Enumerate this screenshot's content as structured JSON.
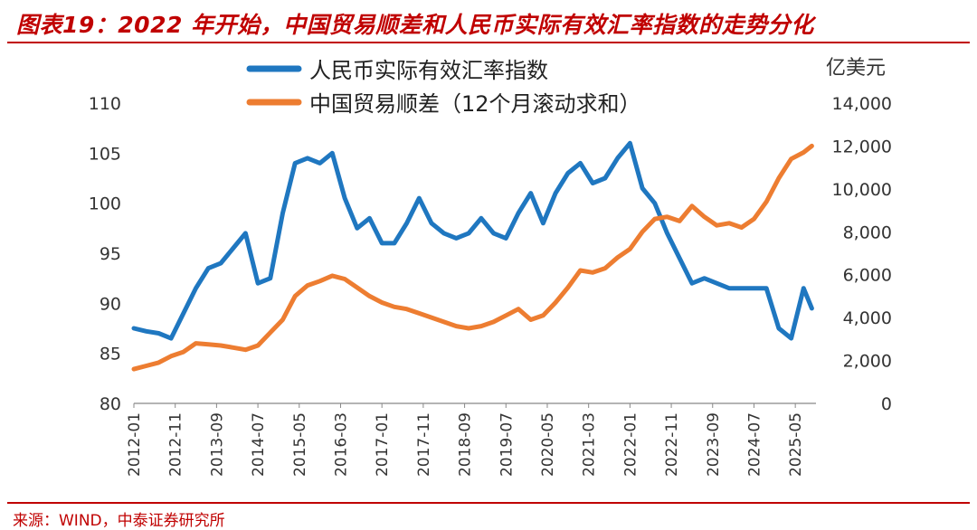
{
  "header": {
    "title": "图表19：2022 年开始，中国贸易顺差和人民币实际有效汇率指数的走势分化"
  },
  "footer": {
    "source": "来源：WIND，中泰证券研究所"
  },
  "colors": {
    "accent_red": "#c00000",
    "reer_line": "#1f77c0",
    "trade_line": "#ed7d31"
  },
  "chart_data": {
    "type": "line",
    "title": "图表19：2022 年开始，中国贸易顺差和人民币实际有效汇率指数的走势分化",
    "xlabel": "",
    "ylabel": "",
    "y2label": "亿美元",
    "ylim": [
      80,
      110
    ],
    "y2lim": [
      0,
      14000
    ],
    "legend": "top-center",
    "grid": false,
    "yticks": [
      "110",
      "105",
      "100",
      "95",
      "90",
      "85",
      "80"
    ],
    "y2ticks": [
      "14,000",
      "12,000",
      "10,000",
      "8,000",
      "6,000",
      "4,000",
      "2,000",
      "0"
    ],
    "xticks": [
      "2012-01",
      "2012-11",
      "2013-09",
      "2014-07",
      "2015-05",
      "2016-03",
      "2017-01",
      "2017-11",
      "2018-09",
      "2019-07",
      "2020-05",
      "2021-03",
      "2022-01",
      "2022-11",
      "2023-09",
      "2024-07",
      "2025-05"
    ],
    "series": [
      {
        "name": "人民币实际有效汇率指数",
        "axis": "left",
        "color": "#1f77c0",
        "x": [
          "2012-01",
          "2012-04",
          "2012-07",
          "2012-10",
          "2013-01",
          "2013-04",
          "2013-07",
          "2013-10",
          "2014-01",
          "2014-04",
          "2014-07",
          "2014-10",
          "2015-01",
          "2015-04",
          "2015-07",
          "2015-10",
          "2016-01",
          "2016-04",
          "2016-07",
          "2016-10",
          "2017-01",
          "2017-04",
          "2017-07",
          "2017-10",
          "2018-01",
          "2018-04",
          "2018-07",
          "2018-10",
          "2019-01",
          "2019-04",
          "2019-07",
          "2019-10",
          "2020-01",
          "2020-04",
          "2020-07",
          "2020-10",
          "2021-01",
          "2021-04",
          "2021-07",
          "2021-10",
          "2022-01",
          "2022-04",
          "2022-07",
          "2022-10",
          "2023-01",
          "2023-04",
          "2023-07",
          "2023-10",
          "2024-01",
          "2024-04",
          "2024-07",
          "2024-10",
          "2025-01",
          "2025-04",
          "2025-07",
          "2025-09"
        ],
        "values": [
          87.5,
          87.2,
          87.0,
          86.5,
          89.0,
          91.5,
          93.5,
          94.0,
          95.5,
          97.0,
          92.0,
          92.5,
          99.0,
          104.0,
          104.5,
          104.0,
          105.0,
          100.5,
          97.5,
          98.5,
          96.0,
          96.0,
          98.0,
          100.5,
          98.0,
          97.0,
          96.5,
          97.0,
          98.5,
          97.0,
          96.5,
          99.0,
          101.0,
          98.0,
          101.0,
          103.0,
          104.0,
          102.0,
          102.5,
          104.5,
          106.0,
          101.5,
          100.0,
          97.0,
          94.5,
          92.0,
          92.5,
          92.0,
          91.5,
          91.5,
          91.5,
          91.5,
          87.5,
          86.5,
          91.5,
          89.5
        ]
      },
      {
        "name": "中国贸易顺差（12个月滚动求和）",
        "axis": "right",
        "color": "#ed7d31",
        "x": [
          "2012-01",
          "2012-04",
          "2012-07",
          "2012-10",
          "2013-01",
          "2013-04",
          "2013-07",
          "2013-10",
          "2014-01",
          "2014-04",
          "2014-07",
          "2014-10",
          "2015-01",
          "2015-04",
          "2015-07",
          "2015-10",
          "2016-01",
          "2016-04",
          "2016-07",
          "2016-10",
          "2017-01",
          "2017-04",
          "2017-07",
          "2017-10",
          "2018-01",
          "2018-04",
          "2018-07",
          "2018-10",
          "2019-01",
          "2019-04",
          "2019-07",
          "2019-10",
          "2020-01",
          "2020-04",
          "2020-07",
          "2020-10",
          "2021-01",
          "2021-04",
          "2021-07",
          "2021-10",
          "2022-01",
          "2022-04",
          "2022-07",
          "2022-10",
          "2023-01",
          "2023-04",
          "2023-07",
          "2023-10",
          "2024-01",
          "2024-04",
          "2024-07",
          "2024-10",
          "2025-01",
          "2025-04",
          "2025-07",
          "2025-09"
        ],
        "values": [
          1600,
          1750,
          1900,
          2200,
          2400,
          2800,
          2750,
          2700,
          2600,
          2500,
          2700,
          3300,
          3900,
          5000,
          5500,
          5700,
          5950,
          5800,
          5400,
          5000,
          4700,
          4500,
          4400,
          4200,
          4000,
          3800,
          3600,
          3500,
          3600,
          3800,
          4100,
          4400,
          3900,
          4100,
          4700,
          5400,
          6200,
          6100,
          6300,
          6800,
          7200,
          8000,
          8600,
          8700,
          8500,
          9200,
          8700,
          8300,
          8400,
          8200,
          8600,
          9400,
          10500,
          11400,
          11700,
          12000
        ]
      }
    ]
  }
}
